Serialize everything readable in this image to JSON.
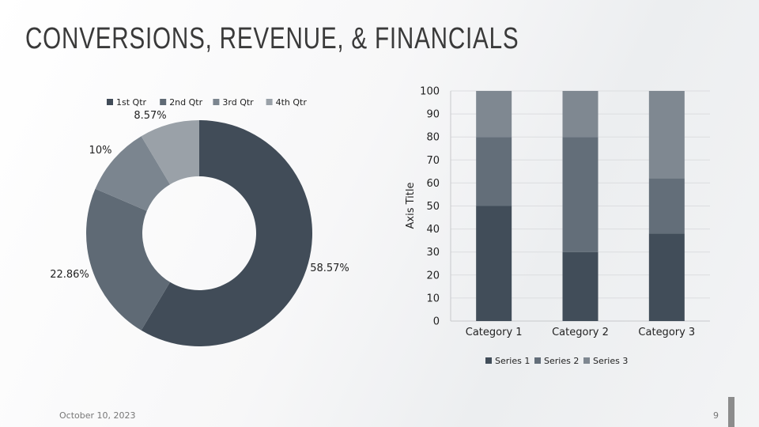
{
  "slide": {
    "title": "CONVERSIONS, REVENUE, & FINANCIALS",
    "date": "October 10, 2023",
    "page_number": "9"
  },
  "chart_data": [
    {
      "type": "pie",
      "style": "doughnut",
      "categories": [
        "1st Qtr",
        "2nd Qtr",
        "3rd Qtr",
        "4th Qtr"
      ],
      "values": [
        58.57,
        22.86,
        10,
        8.57
      ],
      "labels": [
        "58.57%",
        "22.86%",
        "10%",
        "8.57%"
      ],
      "colors": [
        "#414c58",
        "#5f6a75",
        "#7b858f",
        "#9aa1a8"
      ],
      "legend": "top"
    },
    {
      "type": "bar",
      "stacked": true,
      "categories": [
        "Category 1",
        "Category 2",
        "Category 3"
      ],
      "series": [
        {
          "name": "Series 1",
          "values": [
            50,
            30,
            38
          ],
          "color": "#414d59"
        },
        {
          "name": "Series 2",
          "values": [
            30,
            50,
            24
          ],
          "color": "#636e79"
        },
        {
          "name": "Series 3",
          "values": [
            20,
            20,
            38
          ],
          "color": "#7f8891"
        }
      ],
      "ylabel": "Axis Title",
      "ylim": [
        0,
        100
      ],
      "yticks": [
        "0",
        "10",
        "20",
        "30",
        "40",
        "50",
        "60",
        "70",
        "80",
        "90",
        "100"
      ],
      "grid": true,
      "legend": "bottom"
    }
  ]
}
